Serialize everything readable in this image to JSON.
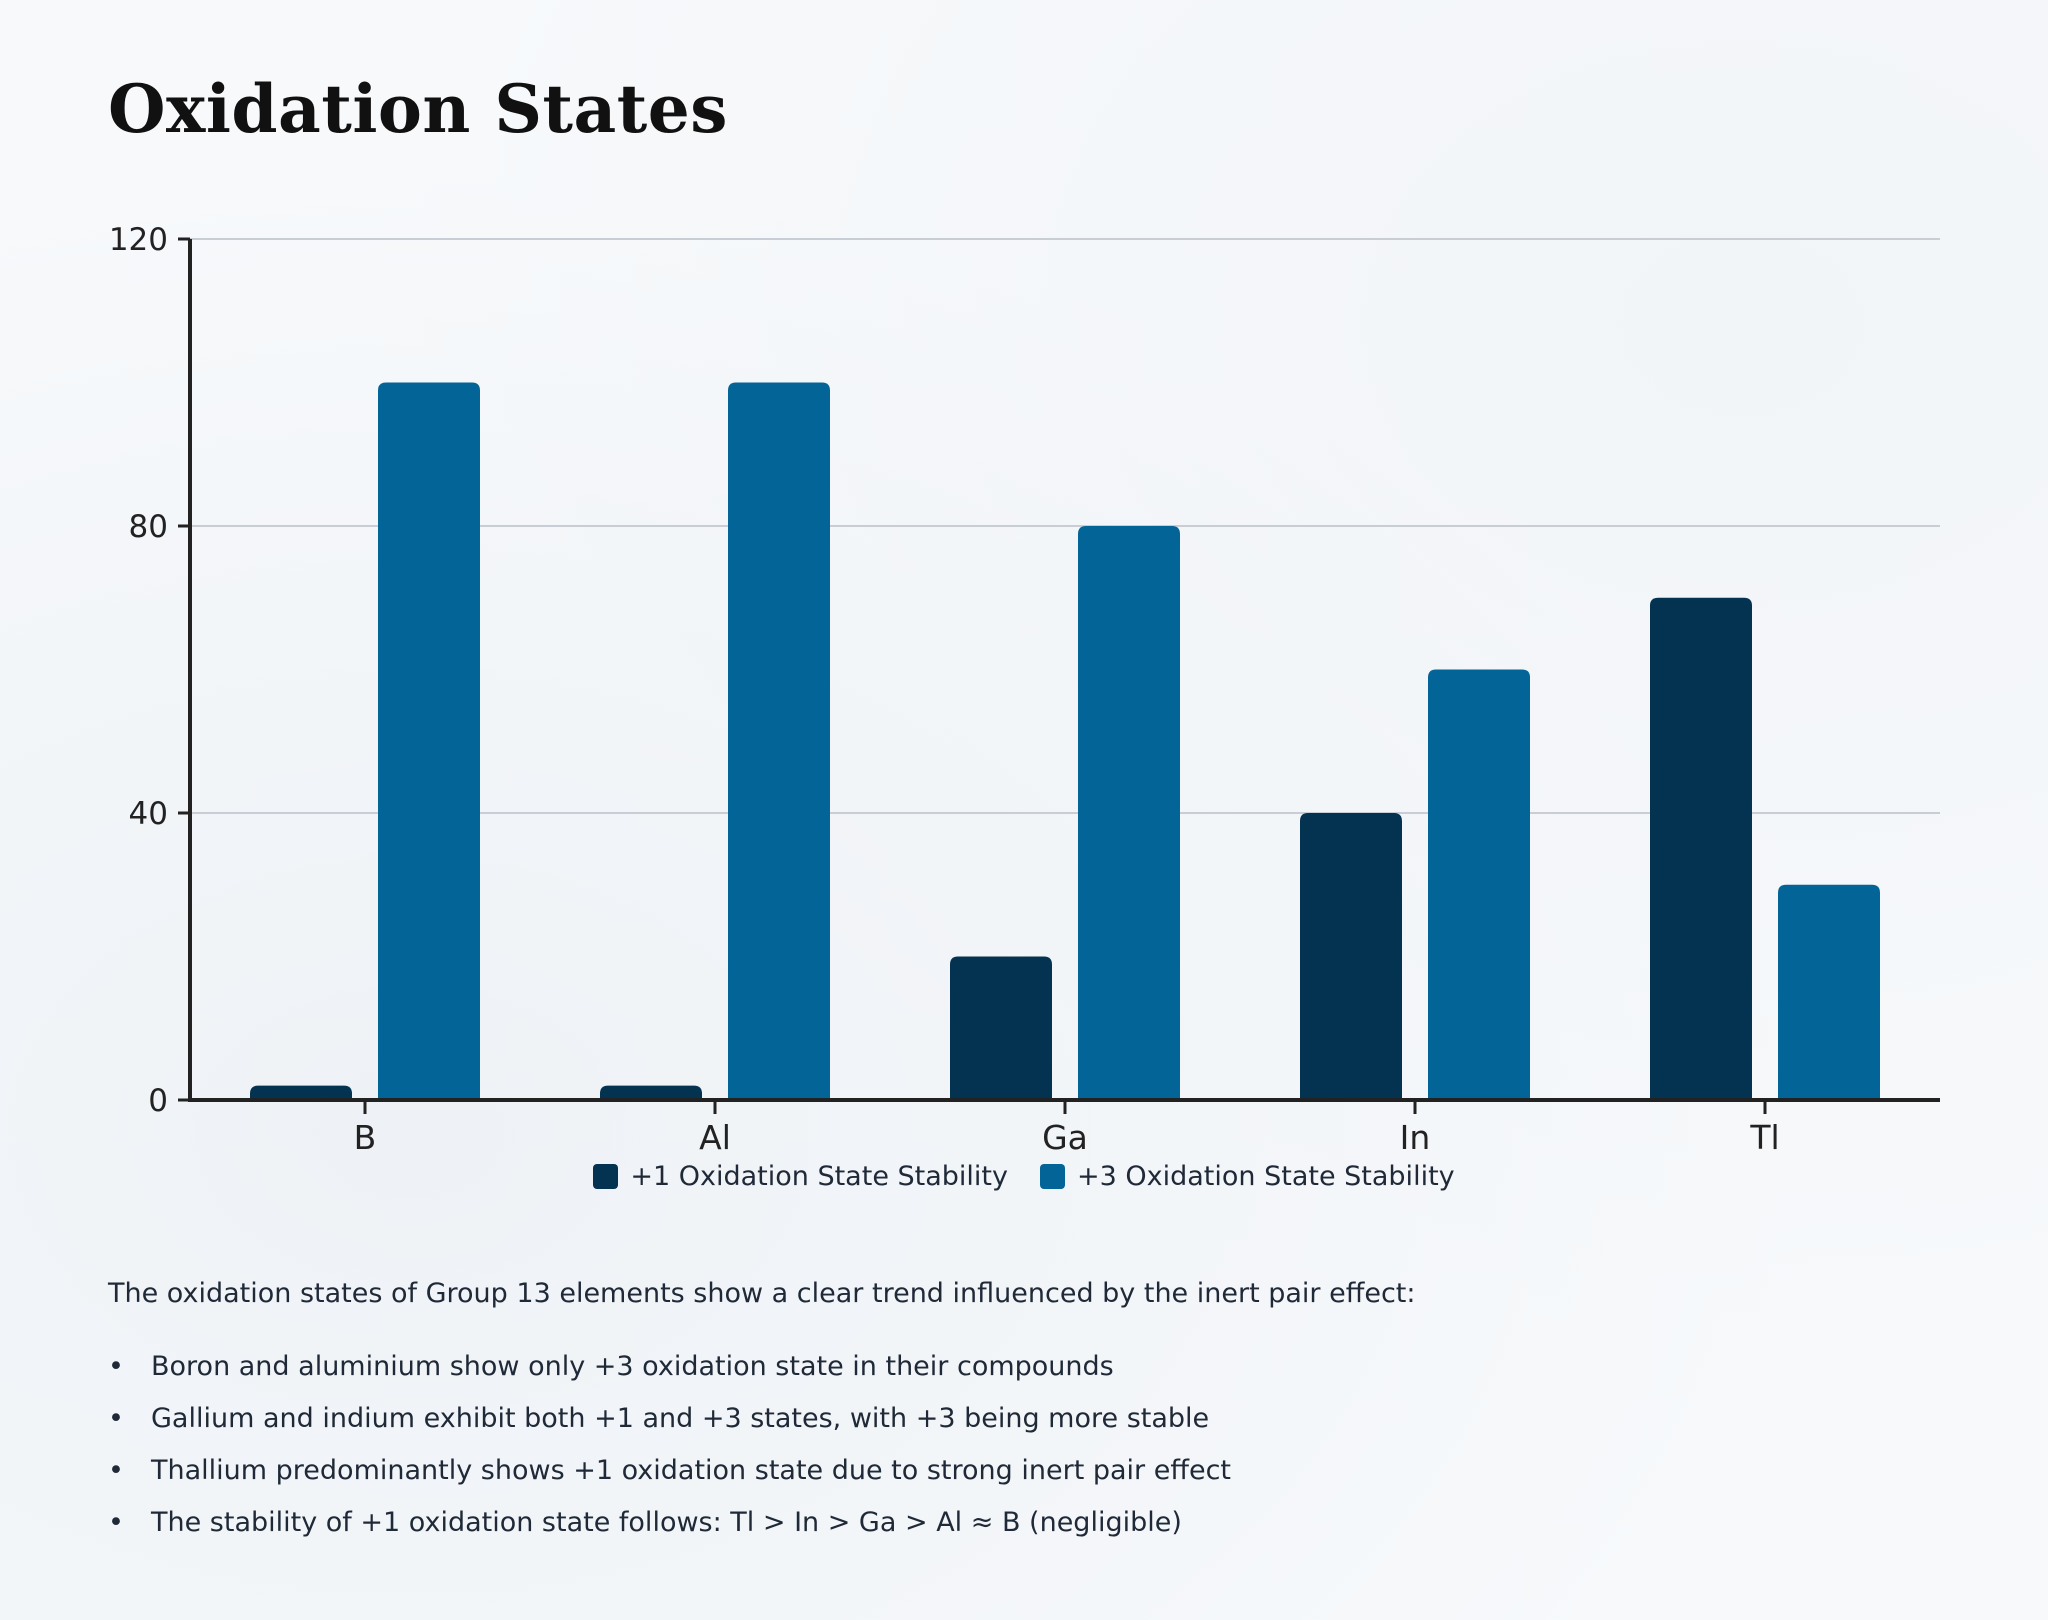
{
  "page": {
    "title": "Oxidation States"
  },
  "chart_data": {
    "type": "bar",
    "categories": [
      "B",
      "Al",
      "Ga",
      "In",
      "Tl"
    ],
    "series": [
      {
        "name": "+1 Oxidation State Stability",
        "color": "#033351",
        "values": [
          2,
          2,
          20,
          40,
          70
        ]
      },
      {
        "name": "+3 Oxidation State Stability",
        "color": "#026497",
        "values": [
          100,
          100,
          80,
          60,
          30
        ]
      }
    ],
    "y_ticks": [
      0,
      40,
      80,
      120
    ],
    "ylim": [
      0,
      120
    ],
    "xlabel": "",
    "ylabel": "",
    "grid": true,
    "legend_position": "bottom-center"
  },
  "legend": {
    "items": [
      {
        "label": "+1 Oxidation State Stability",
        "color": "#033351"
      },
      {
        "label": "+3 Oxidation State Stability",
        "color": "#026497"
      }
    ]
  },
  "description": {
    "intro": "The oxidation states of Group 13 elements show a clear trend influenced by the inert pair effect:",
    "bullet_symbol": "•",
    "bullets": [
      "Boron and aluminium show only +3 oxidation state in their compounds",
      "Gallium and indium exhibit both +1 and +3 states, with +3 being more stable",
      "Thallium predominantly shows +1 oxidation state due to strong inert pair effect",
      "The stability of +1 oxidation state follows: Tl > In > Ga > Al ≈ B (negligible)"
    ]
  }
}
